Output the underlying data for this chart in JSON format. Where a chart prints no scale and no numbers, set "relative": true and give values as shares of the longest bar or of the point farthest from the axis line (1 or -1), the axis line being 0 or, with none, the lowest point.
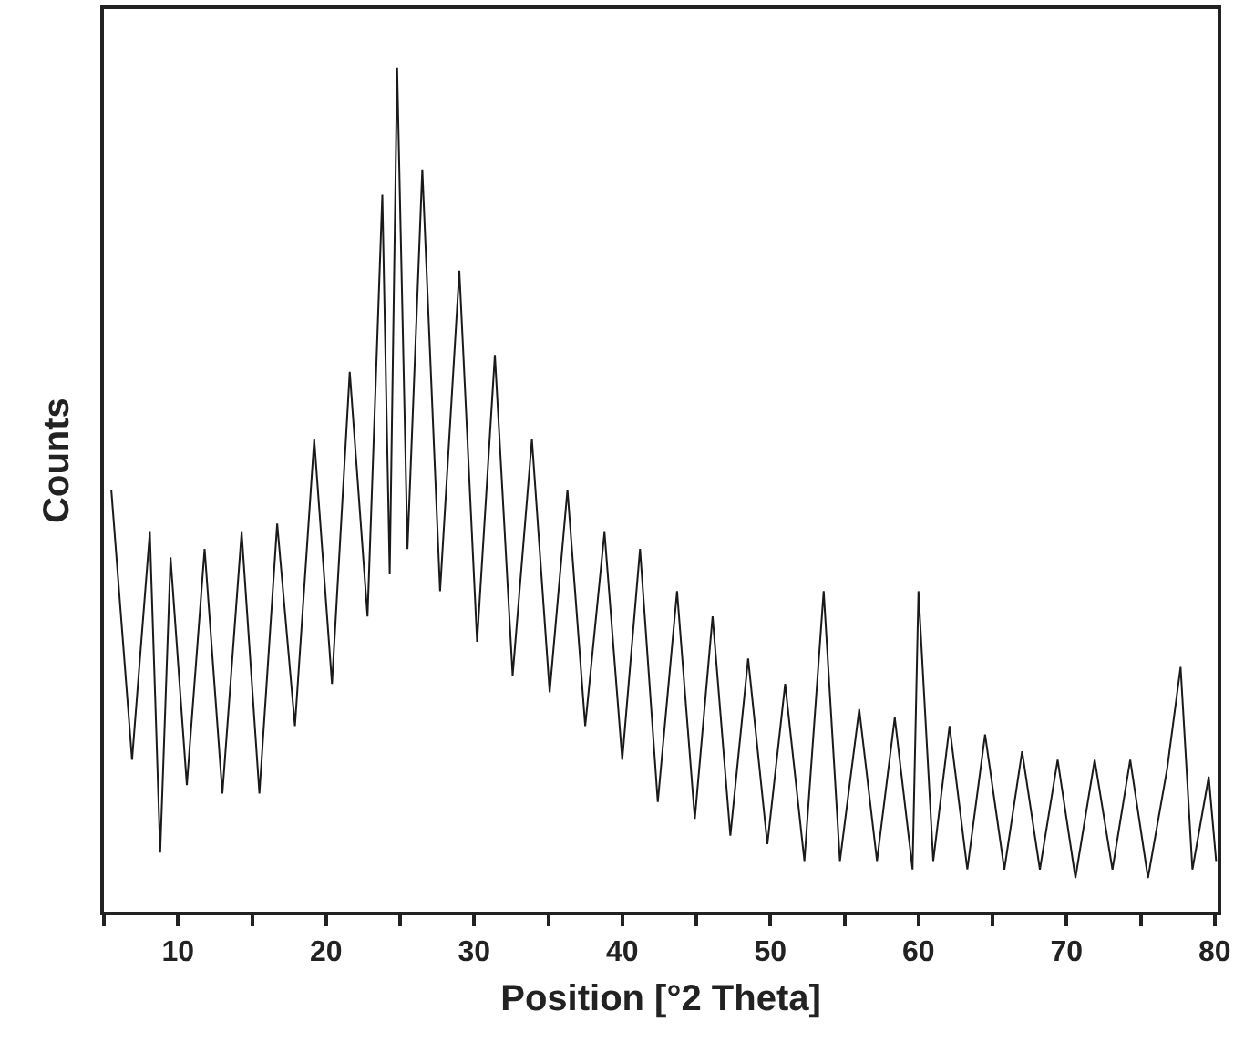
{
  "chart_data": {
    "type": "line",
    "xlabel": "Position [°2 Theta]",
    "ylabel": "Counts",
    "relative": true,
    "marker": "none",
    "line_style": "solid",
    "xlim": [
      5,
      80.2
    ],
    "xticks": [
      {
        "value": 5,
        "label": null
      },
      10,
      {
        "value": 15,
        "label": null
      },
      20,
      {
        "value": 25,
        "label": null
      },
      30,
      {
        "value": 35,
        "label": null
      },
      40,
      {
        "value": 45,
        "label": null
      },
      50,
      {
        "value": 55,
        "label": null
      },
      60,
      {
        "value": 65,
        "label": null
      },
      70,
      {
        "value": 75,
        "label": null
      },
      80
    ],
    "series": [
      {
        "color": "#1a1a1a",
        "x": [
          5.5,
          6.9,
          8.1,
          8.8,
          9.5,
          10.6,
          11.8,
          13.0,
          14.3,
          15.5,
          16.7,
          17.9,
          19.2,
          20.4,
          21.6,
          22.8,
          23.8,
          24.3,
          24.8,
          25.5,
          26.5,
          27.7,
          29.0,
          30.2,
          31.4,
          32.6,
          33.9,
          35.1,
          36.3,
          37.5,
          38.8,
          40.0,
          41.2,
          42.4,
          43.7,
          44.9,
          46.1,
          47.3,
          48.5,
          49.8,
          51.0,
          52.3,
          53.6,
          54.7,
          56.0,
          57.2,
          58.4,
          59.6,
          60.0,
          61.0,
          62.1,
          63.3,
          64.5,
          65.8,
          67.0,
          68.2,
          69.4,
          70.6,
          71.9,
          73.1,
          74.3,
          75.5,
          76.8,
          77.7,
          78.5,
          79.6,
          80.1
        ],
        "values": [
          0.5,
          0.18,
          0.45,
          0.07,
          0.42,
          0.15,
          0.43,
          0.14,
          0.45,
          0.14,
          0.46,
          0.22,
          0.56,
          0.27,
          0.64,
          0.35,
          0.85,
          0.4,
          1.0,
          0.43,
          0.88,
          0.38,
          0.76,
          0.32,
          0.66,
          0.28,
          0.56,
          0.26,
          0.5,
          0.22,
          0.45,
          0.18,
          0.43,
          0.13,
          0.38,
          0.11,
          0.35,
          0.09,
          0.3,
          0.08,
          0.27,
          0.06,
          0.38,
          0.06,
          0.24,
          0.06,
          0.23,
          0.05,
          0.38,
          0.06,
          0.22,
          0.05,
          0.21,
          0.05,
          0.19,
          0.05,
          0.18,
          0.04,
          0.18,
          0.05,
          0.18,
          0.04,
          0.17,
          0.29,
          0.05,
          0.16,
          0.06
        ]
      }
    ]
  }
}
